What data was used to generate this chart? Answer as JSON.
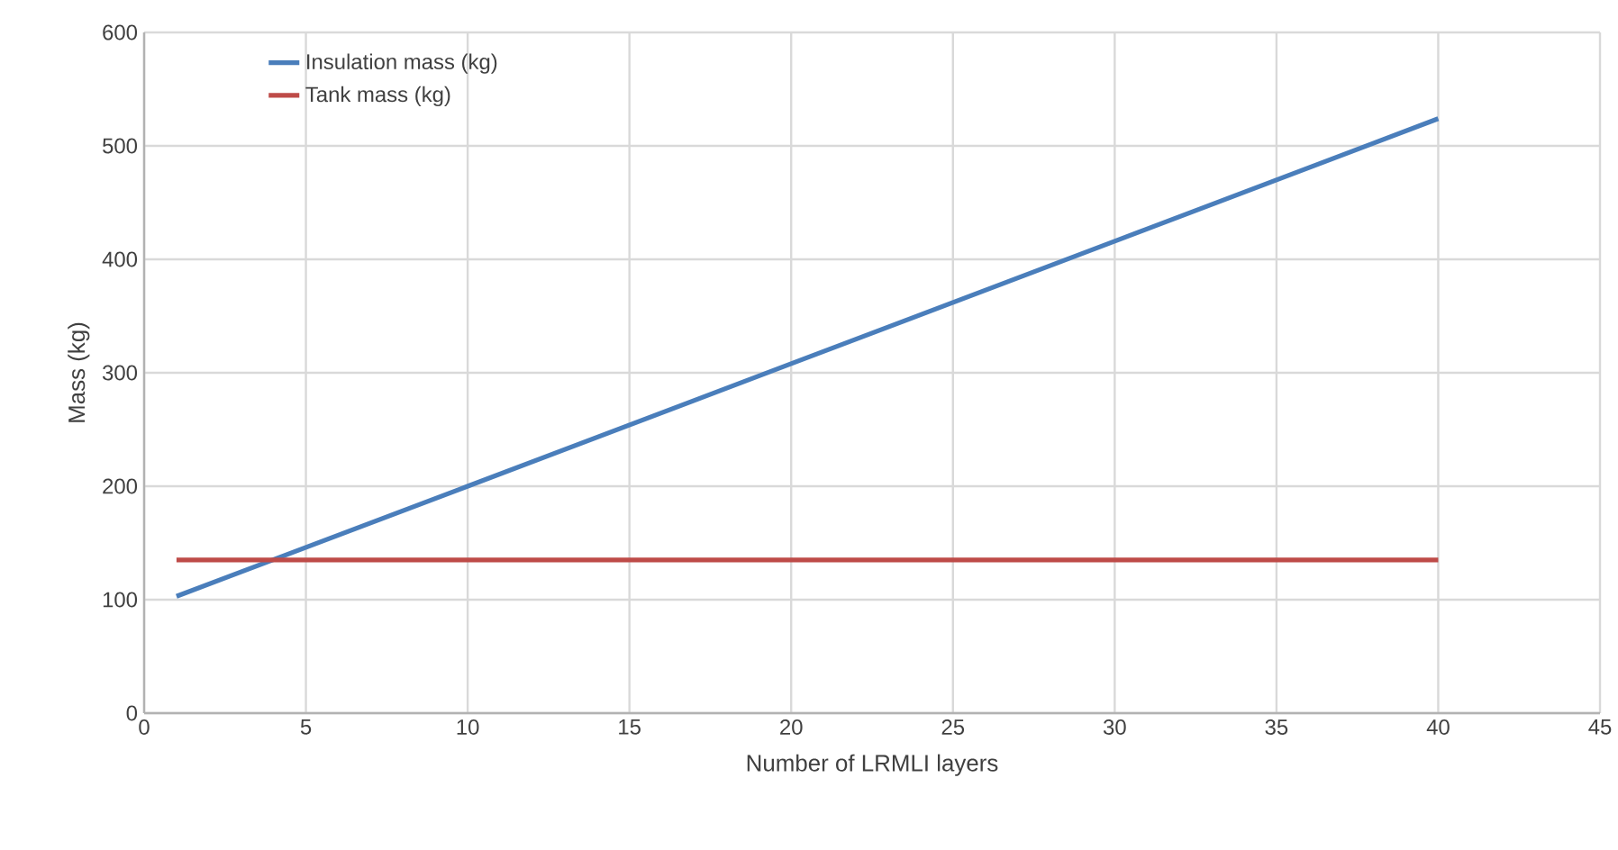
{
  "chart_data": {
    "type": "line",
    "xlabel": "Number of LRMLI layers",
    "ylabel": "Mass (kg)",
    "xlim": [
      0,
      45
    ],
    "xticks": [
      0,
      5,
      10,
      15,
      20,
      25,
      30,
      35,
      40,
      45
    ],
    "ylim": [
      0,
      600
    ],
    "yticks": [
      0,
      100,
      200,
      300,
      400,
      500,
      600
    ],
    "grid": true,
    "legend": "top left",
    "marker": "none",
    "line_style": "solid",
    "series": [
      {
        "name": "Insulation mass (kg)",
        "color": "#4a7ebb",
        "x": [
          1,
          10,
          20,
          30,
          40
        ],
        "values": [
          103,
          200,
          308,
          416,
          524
        ]
      },
      {
        "name": "Tank mass (kg)",
        "color": "#be4b48",
        "x": [
          1,
          10,
          20,
          30,
          40
        ],
        "values": [
          135,
          135,
          135,
          135,
          135
        ]
      }
    ]
  }
}
